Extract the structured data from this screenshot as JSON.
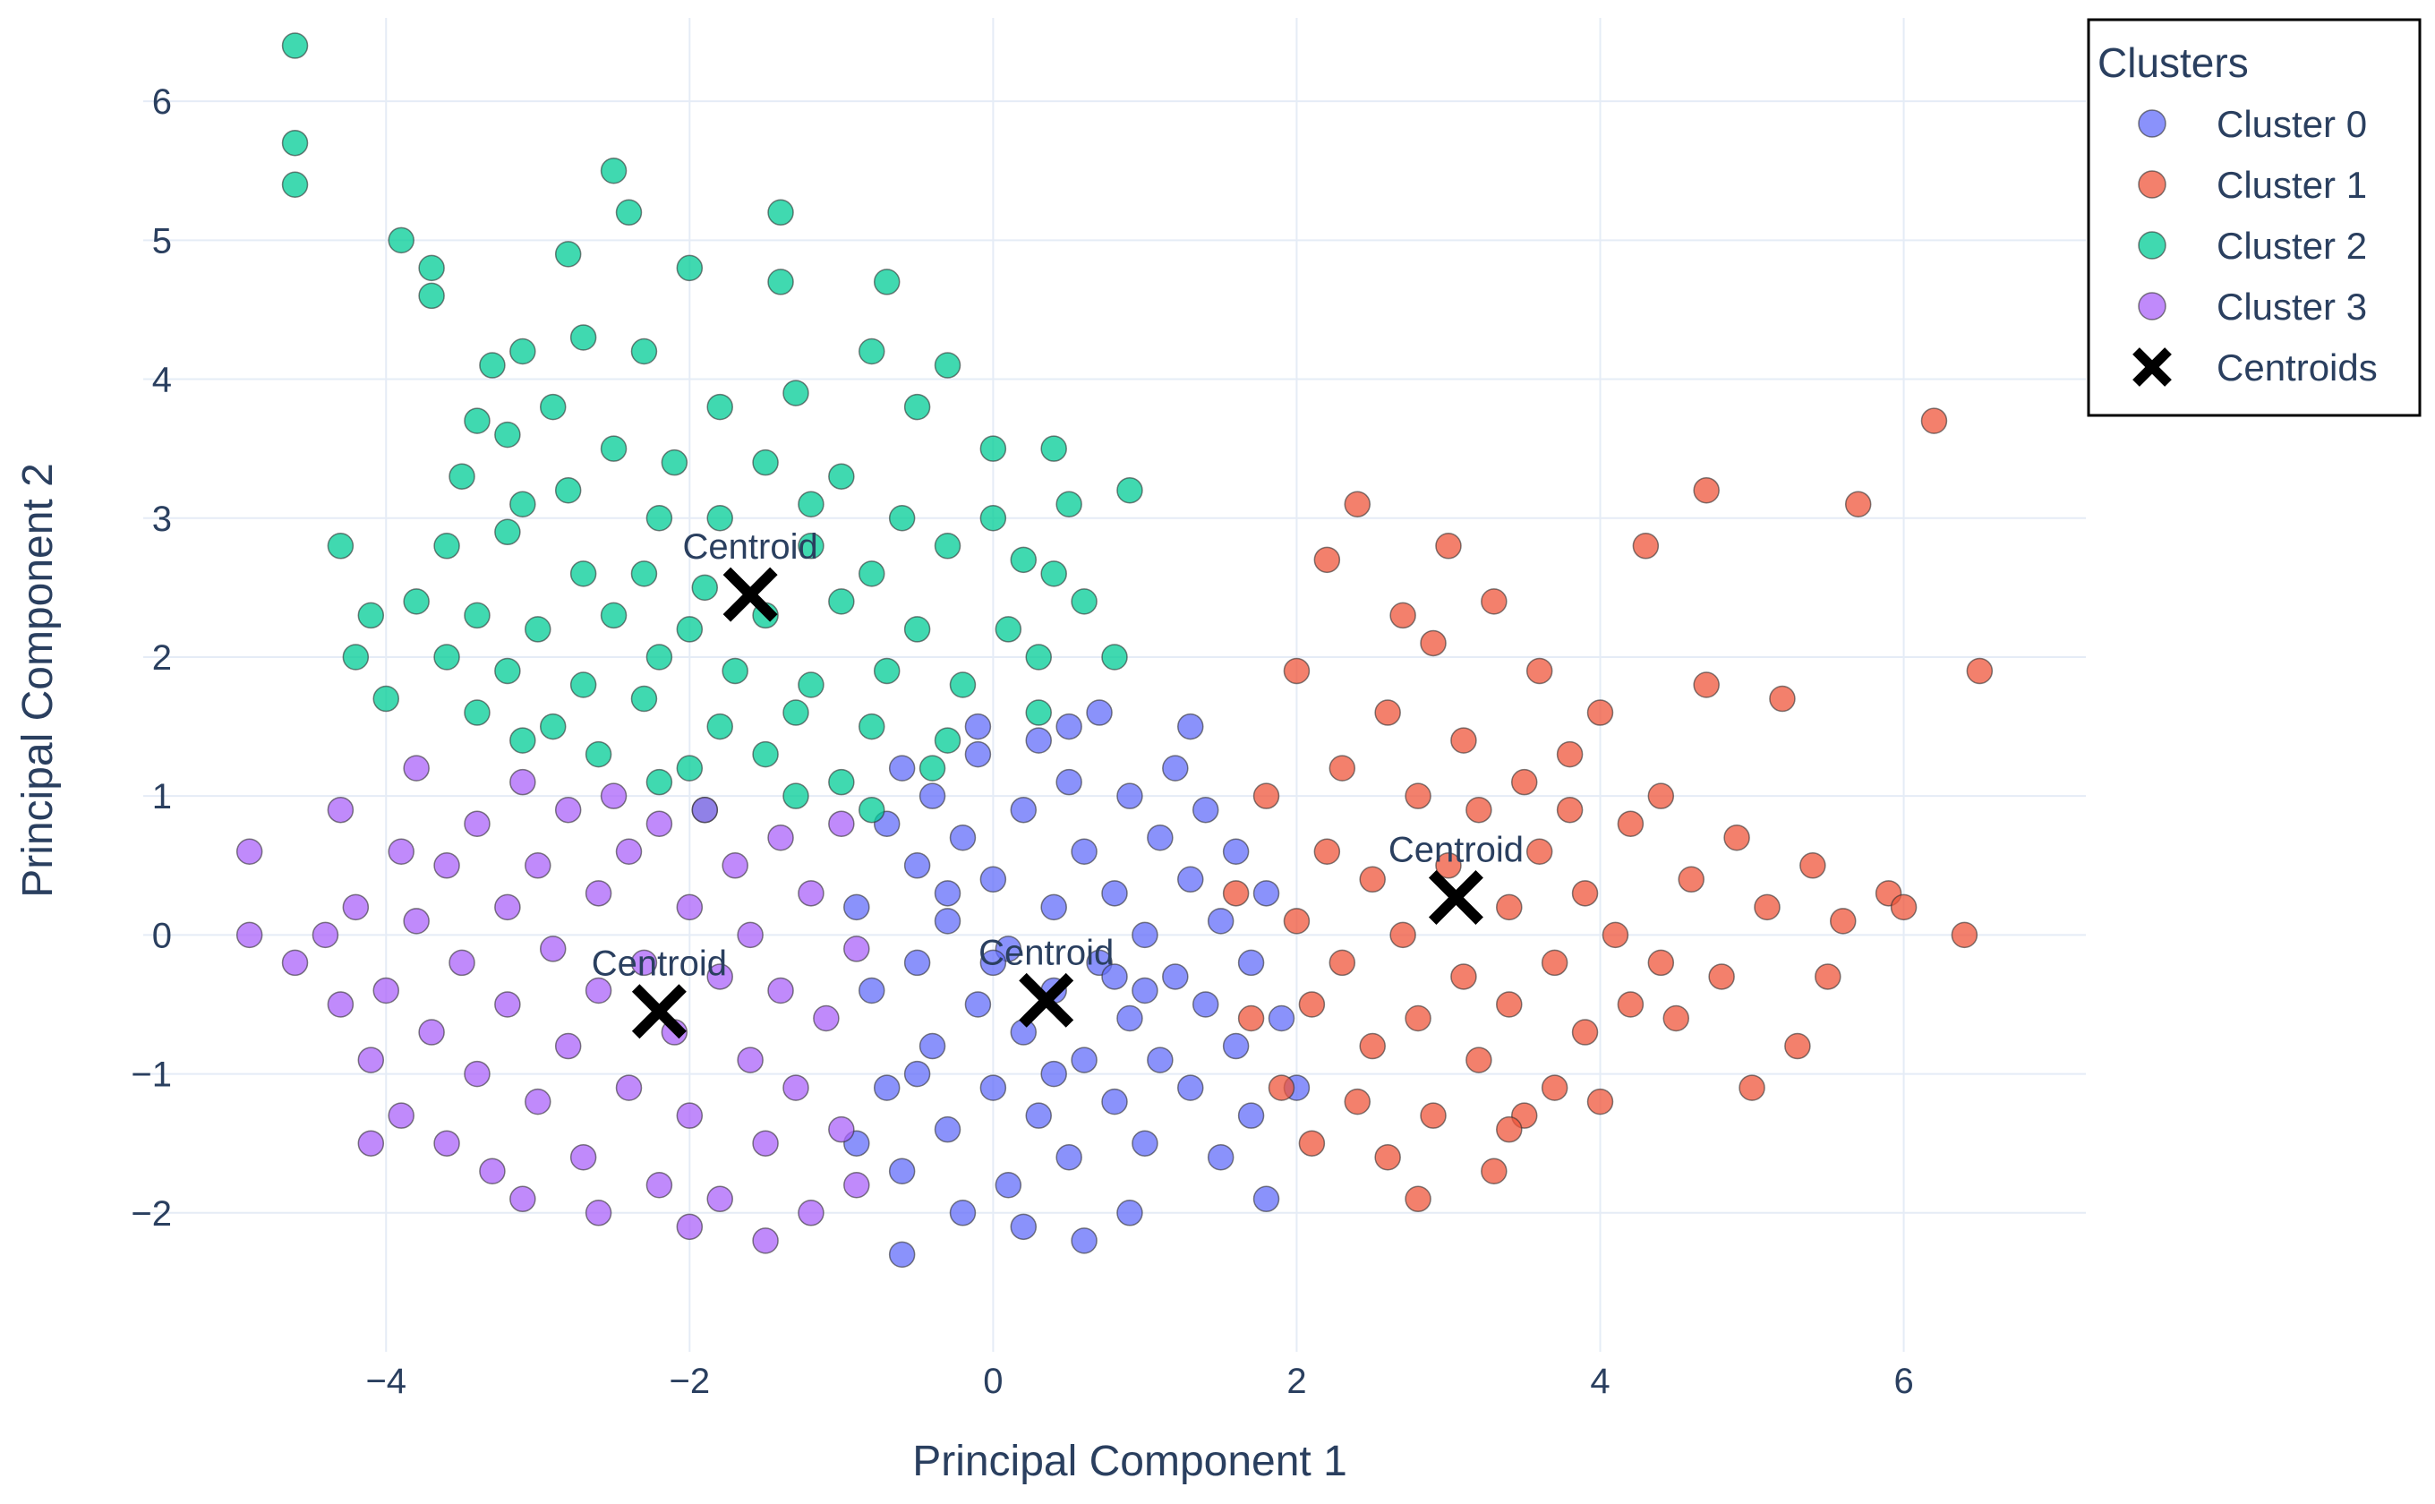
{
  "chart_data": {
    "type": "scatter",
    "title": "",
    "xlabel": "Principal Component 1",
    "ylabel": "Principal Component 2",
    "xlim": [
      -5.6,
      7.2
    ],
    "ylim": [
      -3.0,
      6.6
    ],
    "xticks": [
      -4,
      -2,
      0,
      2,
      4,
      6
    ],
    "xtick_labels": [
      "−4",
      "−2",
      "0",
      "2",
      "4",
      "6"
    ],
    "yticks": [
      -2,
      -1,
      0,
      1,
      2,
      3,
      4,
      5,
      6
    ],
    "ytick_labels": [
      "−2",
      "−1",
      "0",
      "1",
      "2",
      "3",
      "4",
      "5",
      "6"
    ],
    "grid": true,
    "legend": {
      "title": "Clusters",
      "placement": "top-right",
      "entries": [
        "Cluster 0",
        "Cluster 1",
        "Cluster 2",
        "Cluster 3",
        "Centroids"
      ]
    },
    "series": [
      {
        "name": "Cluster 0",
        "color": "#636efa",
        "points": [
          [
            -0.9,
            0.2
          ],
          [
            -0.8,
            -0.4
          ],
          [
            -0.7,
            -1.1
          ],
          [
            -0.7,
            0.8
          ],
          [
            -0.6,
            -1.7
          ],
          [
            -0.6,
            1.2
          ],
          [
            -0.5,
            -0.2
          ],
          [
            -0.5,
            0.5
          ],
          [
            -0.4,
            -0.8
          ],
          [
            -0.4,
            1.0
          ],
          [
            -0.3,
            -1.4
          ],
          [
            -0.3,
            0.1
          ],
          [
            -0.2,
            -2.0
          ],
          [
            -0.2,
            0.7
          ],
          [
            -0.1,
            -0.5
          ],
          [
            -0.1,
            1.3
          ],
          [
            0.0,
            -1.1
          ],
          [
            0.0,
            0.4
          ],
          [
            0.1,
            -1.8
          ],
          [
            0.1,
            -0.1
          ],
          [
            0.2,
            0.9
          ],
          [
            0.2,
            -0.7
          ],
          [
            0.3,
            1.4
          ],
          [
            0.3,
            -1.3
          ],
          [
            0.4,
            0.2
          ],
          [
            0.4,
            -0.4
          ],
          [
            0.5,
            -1.6
          ],
          [
            0.5,
            1.1
          ],
          [
            0.6,
            -0.9
          ],
          [
            0.6,
            0.6
          ],
          [
            0.7,
            -0.2
          ],
          [
            0.7,
            1.6
          ],
          [
            0.8,
            -1.2
          ],
          [
            0.8,
            0.3
          ],
          [
            0.9,
            -0.6
          ],
          [
            0.9,
            1.0
          ],
          [
            1.0,
            -1.5
          ],
          [
            1.0,
            0.0
          ],
          [
            1.1,
            0.7
          ],
          [
            1.1,
            -0.9
          ],
          [
            1.2,
            -0.3
          ],
          [
            1.2,
            1.2
          ],
          [
            1.3,
            -1.1
          ],
          [
            1.3,
            0.4
          ],
          [
            1.4,
            -0.5
          ],
          [
            1.4,
            0.9
          ],
          [
            1.5,
            -1.6
          ],
          [
            1.5,
            0.1
          ],
          [
            1.6,
            -0.8
          ],
          [
            1.6,
            0.6
          ],
          [
            1.7,
            -0.2
          ],
          [
            1.7,
            -1.3
          ],
          [
            1.8,
            0.3
          ],
          [
            1.8,
            -1.9
          ],
          [
            1.9,
            -0.6
          ],
          [
            2.0,
            -1.1
          ],
          [
            0.6,
            -2.2
          ],
          [
            -0.6,
            -2.3
          ],
          [
            0.9,
            -2.0
          ],
          [
            -0.1,
            1.5
          ],
          [
            0.5,
            1.5
          ],
          [
            -0.9,
            -1.5
          ],
          [
            0.2,
            -2.1
          ],
          [
            1.3,
            1.5
          ],
          [
            -0.5,
            -1.0
          ],
          [
            0.0,
            -0.2
          ],
          [
            0.8,
            -0.3
          ],
          [
            -0.3,
            0.3
          ],
          [
            0.4,
            -1.0
          ],
          [
            1.0,
            -0.4
          ]
        ]
      },
      {
        "name": "Cluster 1",
        "color": "#ef553b",
        "points": [
          [
            1.6,
            0.3
          ],
          [
            1.7,
            -0.6
          ],
          [
            1.8,
            1.0
          ],
          [
            1.9,
            -1.1
          ],
          [
            2.0,
            0.1
          ],
          [
            2.0,
            1.9
          ],
          [
            2.1,
            -0.5
          ],
          [
            2.1,
            -1.5
          ],
          [
            2.2,
            0.6
          ],
          [
            2.2,
            2.7
          ],
          [
            2.3,
            -0.2
          ],
          [
            2.3,
            1.2
          ],
          [
            2.4,
            -1.2
          ],
          [
            2.4,
            3.1
          ],
          [
            2.5,
            0.4
          ],
          [
            2.5,
            -0.8
          ],
          [
            2.6,
            1.6
          ],
          [
            2.6,
            -1.6
          ],
          [
            2.7,
            0.0
          ],
          [
            2.7,
            2.3
          ],
          [
            2.8,
            -0.6
          ],
          [
            2.8,
            1.0
          ],
          [
            2.9,
            -1.3
          ],
          [
            2.9,
            2.1
          ],
          [
            3.0,
            0.5
          ],
          [
            3.0,
            2.8
          ],
          [
            3.1,
            -0.3
          ],
          [
            3.1,
            1.4
          ],
          [
            3.2,
            -0.9
          ],
          [
            3.2,
            0.9
          ],
          [
            3.3,
            -1.7
          ],
          [
            3.3,
            2.4
          ],
          [
            3.4,
            0.2
          ],
          [
            3.4,
            -0.5
          ],
          [
            3.5,
            1.1
          ],
          [
            3.5,
            -1.3
          ],
          [
            3.6,
            0.6
          ],
          [
            3.6,
            1.9
          ],
          [
            3.7,
            -0.2
          ],
          [
            3.7,
            -1.1
          ],
          [
            3.8,
            0.9
          ],
          [
            3.8,
            1.3
          ],
          [
            3.9,
            -0.7
          ],
          [
            3.9,
            0.3
          ],
          [
            4.0,
            1.6
          ],
          [
            4.0,
            -1.2
          ],
          [
            4.1,
            0.0
          ],
          [
            4.2,
            -0.5
          ],
          [
            4.2,
            0.8
          ],
          [
            4.3,
            2.8
          ],
          [
            4.4,
            -0.2
          ],
          [
            4.4,
            1.0
          ],
          [
            4.5,
            -0.6
          ],
          [
            4.6,
            0.4
          ],
          [
            4.7,
            1.8
          ],
          [
            4.7,
            3.2
          ],
          [
            4.8,
            -0.3
          ],
          [
            4.9,
            0.7
          ],
          [
            5.0,
            -1.1
          ],
          [
            5.1,
            0.2
          ],
          [
            5.2,
            1.7
          ],
          [
            5.3,
            -0.8
          ],
          [
            5.4,
            0.5
          ],
          [
            5.5,
            -0.3
          ],
          [
            5.6,
            0.1
          ],
          [
            5.7,
            3.1
          ],
          [
            5.9,
            0.3
          ],
          [
            6.0,
            0.2
          ],
          [
            6.2,
            3.7
          ],
          [
            6.4,
            0.0
          ],
          [
            6.5,
            1.9
          ],
          [
            2.8,
            -1.9
          ],
          [
            3.4,
            -1.4
          ]
        ]
      },
      {
        "name": "Cluster 2",
        "color": "#00cc96",
        "points": [
          [
            -4.6,
            6.4
          ],
          [
            -4.6,
            5.7
          ],
          [
            -4.6,
            5.4
          ],
          [
            -3.9,
            5.0
          ],
          [
            -3.7,
            4.8
          ],
          [
            -3.7,
            4.6
          ],
          [
            -2.5,
            5.5
          ],
          [
            -2.4,
            5.2
          ],
          [
            -1.4,
            5.2
          ],
          [
            -2.8,
            4.9
          ],
          [
            -2.0,
            4.8
          ],
          [
            -1.4,
            4.7
          ],
          [
            -0.7,
            4.7
          ],
          [
            -3.3,
            4.1
          ],
          [
            -3.1,
            4.2
          ],
          [
            -2.7,
            4.3
          ],
          [
            -2.3,
            4.2
          ],
          [
            -1.8,
            3.8
          ],
          [
            -1.3,
            3.9
          ],
          [
            -0.8,
            4.2
          ],
          [
            -0.3,
            4.1
          ],
          [
            -0.5,
            3.8
          ],
          [
            -3.4,
            3.7
          ],
          [
            -3.2,
            3.6
          ],
          [
            -2.9,
            3.8
          ],
          [
            -2.5,
            3.5
          ],
          [
            -2.1,
            3.4
          ],
          [
            -1.5,
            3.4
          ],
          [
            -1.0,
            3.3
          ],
          [
            0.0,
            3.5
          ],
          [
            0.4,
            3.5
          ],
          [
            -3.5,
            3.3
          ],
          [
            -3.1,
            3.1
          ],
          [
            -2.8,
            3.2
          ],
          [
            -2.2,
            3.0
          ],
          [
            -1.8,
            3.0
          ],
          [
            -1.2,
            3.1
          ],
          [
            -0.6,
            3.0
          ],
          [
            0.0,
            3.0
          ],
          [
            0.5,
            3.1
          ],
          [
            0.9,
            3.2
          ],
          [
            -4.3,
            2.8
          ],
          [
            -3.6,
            2.8
          ],
          [
            -3.2,
            2.9
          ],
          [
            -2.7,
            2.6
          ],
          [
            -2.3,
            2.6
          ],
          [
            -1.9,
            2.5
          ],
          [
            -1.2,
            2.8
          ],
          [
            -0.8,
            2.6
          ],
          [
            -0.3,
            2.8
          ],
          [
            0.2,
            2.7
          ],
          [
            0.4,
            2.6
          ],
          [
            -4.1,
            2.3
          ],
          [
            -3.8,
            2.4
          ],
          [
            -3.4,
            2.3
          ],
          [
            -3.0,
            2.2
          ],
          [
            -2.5,
            2.3
          ],
          [
            -2.0,
            2.2
          ],
          [
            -1.5,
            2.3
          ],
          [
            -1.0,
            2.4
          ],
          [
            -0.5,
            2.2
          ],
          [
            0.1,
            2.2
          ],
          [
            0.6,
            2.4
          ],
          [
            -4.2,
            2.0
          ],
          [
            -3.6,
            2.0
          ],
          [
            -3.2,
            1.9
          ],
          [
            -2.7,
            1.8
          ],
          [
            -2.2,
            2.0
          ],
          [
            -1.7,
            1.9
          ],
          [
            -1.2,
            1.8
          ],
          [
            -0.7,
            1.9
          ],
          [
            -0.2,
            1.8
          ],
          [
            0.3,
            2.0
          ],
          [
            0.8,
            2.0
          ],
          [
            -4.0,
            1.7
          ],
          [
            -3.4,
            1.6
          ],
          [
            -2.9,
            1.5
          ],
          [
            -2.3,
            1.7
          ],
          [
            -1.8,
            1.5
          ],
          [
            -1.3,
            1.6
          ],
          [
            -0.8,
            1.5
          ],
          [
            -0.3,
            1.4
          ],
          [
            0.3,
            1.6
          ],
          [
            -3.1,
            1.4
          ],
          [
            -2.6,
            1.3
          ],
          [
            -2.0,
            1.2
          ],
          [
            -1.5,
            1.3
          ],
          [
            -1.0,
            1.1
          ],
          [
            -0.4,
            1.2
          ],
          [
            -2.2,
            1.1
          ],
          [
            -1.3,
            1.0
          ],
          [
            -0.8,
            0.9
          ],
          [
            -1.9,
            0.9
          ]
        ]
      },
      {
        "name": "Cluster 3",
        "color": "#ab63fa",
        "points": [
          [
            -4.9,
            0.6
          ],
          [
            -4.9,
            0.0
          ],
          [
            -4.6,
            -0.2
          ],
          [
            -4.4,
            0.0
          ],
          [
            -4.3,
            -0.5
          ],
          [
            -4.3,
            0.9
          ],
          [
            -4.2,
            0.2
          ],
          [
            -4.1,
            -0.9
          ],
          [
            -4.0,
            -0.4
          ],
          [
            -3.9,
            -1.3
          ],
          [
            -3.9,
            0.6
          ],
          [
            -3.8,
            1.2
          ],
          [
            -3.8,
            0.1
          ],
          [
            -3.7,
            -0.7
          ],
          [
            -3.6,
            -1.5
          ],
          [
            -3.6,
            0.5
          ],
          [
            -3.5,
            -0.2
          ],
          [
            -3.4,
            -1.0
          ],
          [
            -3.4,
            0.8
          ],
          [
            -3.3,
            -1.7
          ],
          [
            -3.2,
            0.2
          ],
          [
            -3.2,
            -0.5
          ],
          [
            -3.1,
            1.1
          ],
          [
            -3.0,
            -1.2
          ],
          [
            -3.0,
            0.5
          ],
          [
            -2.9,
            -0.1
          ],
          [
            -2.8,
            -0.8
          ],
          [
            -2.8,
            0.9
          ],
          [
            -2.7,
            -1.6
          ],
          [
            -2.6,
            0.3
          ],
          [
            -2.6,
            -0.4
          ],
          [
            -2.5,
            1.0
          ],
          [
            -2.4,
            -1.1
          ],
          [
            -2.4,
            0.6
          ],
          [
            -2.3,
            -0.2
          ],
          [
            -2.2,
            -1.8
          ],
          [
            -2.2,
            0.8
          ],
          [
            -2.1,
            -0.7
          ],
          [
            -2.0,
            0.2
          ],
          [
            -2.0,
            -1.3
          ],
          [
            -1.9,
            0.9
          ],
          [
            -1.8,
            -0.3
          ],
          [
            -1.8,
            -1.9
          ],
          [
            -1.7,
            0.5
          ],
          [
            -1.6,
            -0.9
          ],
          [
            -1.6,
            0.0
          ],
          [
            -1.5,
            -1.5
          ],
          [
            -1.4,
            0.7
          ],
          [
            -1.4,
            -0.4
          ],
          [
            -1.3,
            -1.1
          ],
          [
            -1.2,
            0.3
          ],
          [
            -1.2,
            -2.0
          ],
          [
            -1.1,
            -0.6
          ],
          [
            -1.0,
            0.8
          ],
          [
            -1.0,
            -1.4
          ],
          [
            -0.9,
            -0.1
          ],
          [
            -0.9,
            -1.8
          ],
          [
            -2.6,
            -2.0
          ],
          [
            -3.1,
            -1.9
          ],
          [
            -1.5,
            -2.2
          ],
          [
            -4.1,
            -1.5
          ],
          [
            -2.0,
            -2.1
          ]
        ]
      },
      {
        "name": "Centroids",
        "color": "#000000",
        "text": "Centroid",
        "points": [
          [
            -1.6,
            2.45
          ],
          [
            3.05,
            0.27
          ],
          [
            -2.2,
            -0.55
          ],
          [
            0.35,
            -0.47
          ]
        ]
      }
    ]
  }
}
